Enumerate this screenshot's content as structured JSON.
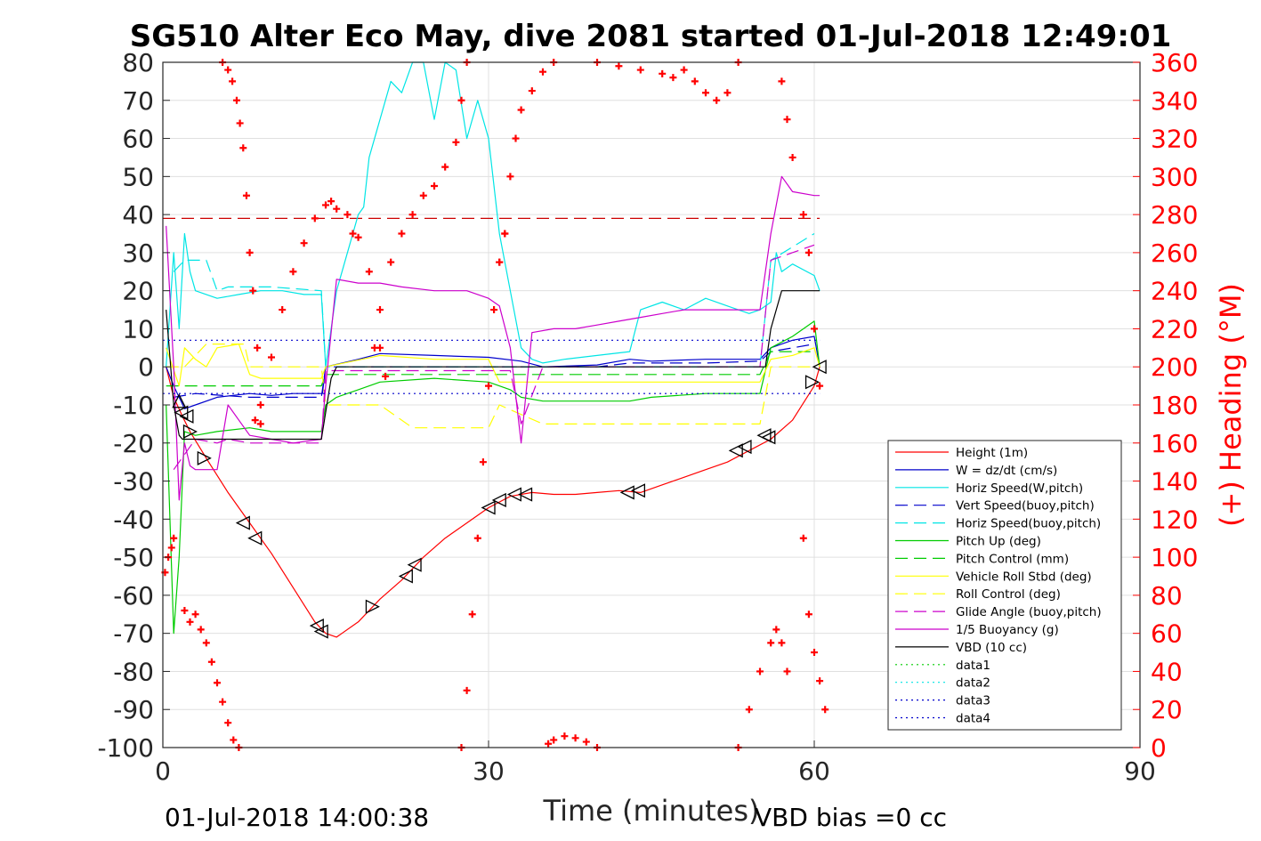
{
  "chart_data": {
    "type": "line",
    "title": "SG510 Alter Eco May, dive 2081 started 01-Jul-2018 12:49:01",
    "xlabel": "Time (minutes)",
    "ylabel": "",
    "y2label": "(+) Heading (°M)",
    "xlim": [
      0,
      90
    ],
    "ylim": [
      -100,
      80
    ],
    "y2lim": [
      0,
      360
    ],
    "x_ticks": [
      "0",
      "30",
      "60",
      "90"
    ],
    "y_ticks": [
      "80",
      "70",
      "60",
      "50",
      "40",
      "30",
      "20",
      "10",
      "0",
      "-10",
      "-20",
      "-30",
      "-40",
      "-50",
      "-60",
      "-70",
      "-80",
      "-90",
      "-100"
    ],
    "y2_ticks": [
      "360",
      "340",
      "320",
      "300",
      "280",
      "260",
      "240",
      "220",
      "200",
      "180",
      "160",
      "140",
      "120",
      "100",
      "80",
      "60",
      "40",
      "20",
      "0"
    ],
    "grid": true,
    "legend_position": "bottom-right",
    "footer_left": "01-Jul-2018 14:00:38",
    "footer_right": "VBD bias =0 cc",
    "series": [
      {
        "name": "Height (1m)",
        "color": "#ff0000",
        "style": "solid",
        "x": [
          0.3,
          1,
          1.8,
          2.5,
          4,
          6,
          8,
          10,
          12,
          14,
          15,
          16,
          18,
          20,
          22,
          24,
          26,
          28,
          30,
          32,
          34,
          36,
          38,
          40,
          42,
          44,
          46,
          48,
          50,
          52,
          54,
          56,
          58,
          60,
          60.5
        ],
        "y": [
          0,
          -8,
          -13,
          -17,
          -24,
          -33,
          -41,
          -49,
          -58,
          -67,
          -70,
          -71,
          -67,
          -61,
          -56,
          -50,
          -45,
          -41,
          -37,
          -34,
          -33,
          -33.5,
          -33.5,
          -33,
          -32.5,
          -33,
          -31,
          -29,
          -27,
          -25,
          -22,
          -19,
          -14,
          -5,
          0
        ]
      },
      {
        "name": "W = dz/dt (cm/s)",
        "color": "#0000cc",
        "style": "solid",
        "x": [
          0.3,
          1,
          2,
          3,
          5,
          8,
          10,
          12,
          14,
          14.7,
          15,
          18,
          20,
          25,
          30,
          33,
          35,
          40,
          43,
          45,
          50,
          55,
          56,
          58,
          60,
          60.5
        ],
        "y": [
          0,
          -5,
          -11,
          -10,
          -8,
          -7,
          -7.5,
          -7,
          -7,
          -7,
          0,
          2,
          3.5,
          3,
          2.5,
          1.5,
          0,
          0.5,
          2,
          1.5,
          2,
          2,
          5,
          7,
          8,
          0
        ]
      },
      {
        "name": "Horiz Speed(W,pitch)",
        "color": "#00e5e5",
        "style": "solid",
        "x": [
          0.3,
          1,
          1.5,
          2,
          2.5,
          3,
          5,
          7,
          9,
          11,
          13,
          14.6,
          15,
          16,
          17,
          18,
          18.5,
          19,
          20,
          21,
          22,
          23,
          24,
          25,
          26,
          27,
          28,
          29,
          30,
          31,
          32,
          33,
          34,
          35,
          37,
          40,
          43,
          44,
          46,
          48,
          50,
          52,
          54,
          55,
          56,
          56.5,
          57,
          58,
          60,
          60.5
        ],
        "y": [
          0,
          30,
          10,
          35,
          25,
          20,
          18,
          19,
          20,
          20,
          19,
          19,
          0,
          20,
          30,
          40,
          42,
          55,
          65,
          75,
          72,
          80,
          80,
          65,
          80,
          78,
          60,
          70,
          60,
          35,
          20,
          5,
          2,
          1,
          2,
          3,
          4,
          15,
          17,
          15,
          18,
          16,
          14,
          15,
          17,
          30,
          25,
          27,
          24,
          20
        ]
      },
      {
        "name": "Vert Speed(buoy,pitch)",
        "color": "#0000cc",
        "style": "dashed",
        "x": [
          1,
          3,
          8,
          14.6,
          15,
          30,
          35,
          40,
          43,
          50,
          55,
          56,
          60
        ],
        "y": [
          -8,
          -7,
          -8,
          -8,
          0,
          0,
          0,
          0,
          1,
          1,
          1.5,
          4,
          6
        ]
      },
      {
        "name": "Horiz Speed(buoy,pitch)",
        "color": "#00e5e5",
        "style": "dashed",
        "x": [
          1,
          2,
          4,
          5,
          6,
          10,
          14.6,
          15,
          30,
          31,
          35,
          40,
          43,
          50,
          55,
          56,
          60
        ],
        "y": [
          25,
          28,
          28,
          20,
          21,
          21,
          20,
          0,
          0,
          0,
          0,
          0,
          0,
          0,
          0,
          28,
          35
        ]
      },
      {
        "name": "Pitch Up (deg)",
        "color": "#00cc00",
        "style": "solid",
        "x": [
          0.3,
          1,
          1.5,
          2,
          3,
          5,
          8,
          10,
          14.6,
          15,
          16,
          18,
          20,
          25,
          30,
          32,
          33,
          35,
          40,
          43,
          45,
          50,
          55,
          56,
          58,
          60,
          60.5
        ],
        "y": [
          -10,
          -70,
          -50,
          -17,
          -18,
          -17,
          -16,
          -17,
          -17,
          -10,
          -8,
          -6,
          -4,
          -3,
          -4,
          -6,
          -8,
          -9,
          -9,
          -9,
          -8,
          -7,
          -7,
          5,
          8,
          12,
          0
        ]
      },
      {
        "name": "Pitch Control (mm)",
        "color": "#00cc00",
        "style": "dashed",
        "x": [
          0.3,
          2,
          10,
          14.6,
          15,
          30,
          35,
          45,
          50,
          55,
          56,
          60
        ],
        "y": [
          -5,
          -5,
          -5,
          -5,
          -2,
          -2,
          -2,
          -2,
          -2,
          -2,
          4,
          4
        ]
      },
      {
        "name": "Vehicle Roll Stbd (deg)",
        "color": "#ffff00",
        "style": "solid",
        "x": [
          0.3,
          1.5,
          2,
          3,
          4,
          5,
          7,
          8,
          9,
          10,
          14.6,
          15,
          20,
          25,
          30,
          31,
          32,
          35,
          40,
          45,
          50,
          55,
          56,
          58,
          60,
          60.5
        ],
        "y": [
          5,
          -5,
          5,
          2,
          0,
          5,
          6,
          -2,
          -3,
          -3,
          -3,
          0,
          3,
          2,
          2,
          -4,
          -4,
          -4,
          -4,
          -4,
          -4,
          -4,
          2,
          3,
          5,
          0
        ]
      },
      {
        "name": "Roll Control (deg)",
        "color": "#ffff00",
        "style": "dashed",
        "x": [
          0.3,
          2,
          4,
          7.5,
          8,
          14.6,
          15,
          20,
          23,
          25,
          30,
          31,
          35,
          43,
          50,
          55,
          56,
          60
        ],
        "y": [
          0,
          0,
          6,
          6,
          0,
          0,
          -10,
          -10,
          -16,
          -16,
          -16,
          -10,
          -15,
          -15,
          -15,
          -15,
          0,
          0
        ]
      },
      {
        "name": "Glide Angle (buoy,pitch)",
        "color": "#cc00cc",
        "style": "dashed",
        "x": [
          1,
          2,
          3,
          5,
          6,
          8,
          14.6,
          15,
          30,
          31,
          32,
          33,
          35,
          40,
          45,
          50,
          55,
          56,
          60
        ],
        "y": [
          -27,
          -23,
          -19,
          -20,
          -19,
          -20,
          -20,
          -1,
          -1,
          -1,
          -1,
          -15,
          0,
          0,
          0,
          0,
          0,
          28,
          32
        ]
      },
      {
        "name": "1/5 Buoyancy (g)",
        "color": "#cc00cc",
        "style": "solid",
        "x": [
          0.3,
          1,
          1.5,
          2,
          2.5,
          3,
          5,
          6,
          8,
          10,
          12,
          14.6,
          15,
          16,
          18,
          20,
          22,
          25,
          28,
          30,
          31,
          32,
          33,
          34,
          36,
          38,
          40,
          42,
          44,
          46,
          48,
          50,
          55,
          56,
          57,
          58,
          60,
          60.5
        ],
        "y": [
          37,
          0,
          -35,
          -20,
          -26,
          -27,
          -27,
          -10,
          -18,
          -19,
          -20,
          -19,
          -5,
          23,
          22,
          22,
          21,
          20,
          20,
          18,
          16,
          5,
          -20,
          9,
          10,
          10,
          11,
          12,
          13,
          14,
          15,
          15,
          15,
          35,
          50,
          46,
          45,
          45
        ]
      },
      {
        "name": "VBD (10 cc)",
        "color": "#000000",
        "style": "solid",
        "x": [
          0.3,
          1,
          1.5,
          1.8,
          2,
          14.6,
          15.5,
          16,
          30,
          40,
          55.5,
          56,
          57,
          60.5
        ],
        "y": [
          15,
          -10,
          -18,
          -19,
          -19,
          -19,
          -3,
          0,
          0,
          0,
          0,
          10,
          20,
          20
        ]
      },
      {
        "name": "data1",
        "color": "#00cc00",
        "style": "dotted",
        "x": [],
        "y": []
      },
      {
        "name": "data2",
        "color": "#00e5e5",
        "style": "dotted",
        "x": [],
        "y": []
      },
      {
        "name": "data3",
        "color": "#0000cc",
        "style": "dotted",
        "x": [
          0,
          60.5
        ],
        "y": [
          7,
          7
        ]
      },
      {
        "name": "data4",
        "color": "#0000cc",
        "style": "dotted",
        "x": [
          0,
          60.5
        ],
        "y": [
          -7,
          -7
        ]
      }
    ],
    "heading_ref_dashed": {
      "color": "#cc0000",
      "y2": 278,
      "x": [
        0,
        60.5
      ]
    },
    "heading_markers": {
      "color": "#ff0000",
      "symbol": "+",
      "axis": "right",
      "segments": [
        {
          "x": [
            0.2,
            0.5,
            0.8,
            1.0
          ],
          "y2": [
            92,
            100,
            105,
            110
          ]
        },
        {
          "x": [
            2,
            2.5,
            3.0,
            3.5,
            4.0,
            4.5,
            5,
            5.5,
            6,
            6.5,
            7
          ],
          "y2": [
            72,
            66,
            70,
            62,
            55,
            45,
            34,
            24,
            13,
            4,
            0
          ]
        },
        {
          "x": [
            5.5,
            6.0,
            6.4,
            6.8,
            7.1,
            7.4,
            7.7,
            8,
            8.3,
            8.7,
            9
          ],
          "y2": [
            360,
            356,
            350,
            340,
            328,
            315,
            290,
            260,
            240,
            210,
            170
          ]
        },
        {
          "x": [
            8.5,
            9,
            10,
            11,
            12,
            13,
            14,
            15,
            15.5,
            16,
            17,
            17.5,
            18,
            19,
            20,
            20.5
          ],
          "y2": [
            172,
            180,
            205,
            230,
            250,
            265,
            278,
            285,
            287,
            283,
            280,
            270,
            268,
            250,
            210,
            195
          ]
        },
        {
          "x": [
            19.5,
            20,
            21,
            22,
            23,
            24,
            25,
            26,
            27,
            27.5,
            28
          ],
          "y2": [
            210,
            230,
            255,
            270,
            280,
            290,
            295,
            305,
            318,
            340,
            360
          ]
        },
        {
          "x": [
            27.5,
            28,
            28.5,
            29,
            29.5,
            30,
            30.5,
            31,
            31.5
          ],
          "y2": [
            0,
            30,
            70,
            110,
            150,
            190,
            230,
            255,
            270
          ]
        },
        {
          "x": [
            31,
            31.5,
            32,
            32.5,
            33,
            34,
            35,
            36
          ],
          "y2": [
            255,
            270,
            300,
            320,
            335,
            345,
            355,
            360
          ]
        },
        {
          "x": [
            35.5,
            36,
            37,
            38,
            39,
            40
          ],
          "y2": [
            2,
            4,
            6,
            5,
            3,
            0
          ]
        },
        {
          "x": [
            40,
            42,
            44,
            46,
            47,
            48,
            49,
            50,
            51,
            52,
            53
          ],
          "y2": [
            360,
            358,
            356,
            354,
            352,
            356,
            350,
            344,
            340,
            344,
            360
          ]
        },
        {
          "x": [
            53,
            54,
            55,
            56,
            56.5,
            57,
            57.5
          ],
          "y2": [
            0,
            20,
            40,
            55,
            62,
            55,
            40
          ]
        },
        {
          "x": [
            57,
            57.5,
            58,
            59,
            59.5,
            60,
            60.5
          ],
          "y2": [
            350,
            330,
            310,
            280,
            260,
            220,
            190
          ]
        },
        {
          "x": [
            59,
            59.5,
            60,
            60.5,
            61
          ],
          "y2": [
            110,
            70,
            50,
            35,
            20
          ]
        }
      ]
    },
    "triangle_markers": {
      "color": "#000000",
      "points": [
        {
          "x": 1.5,
          "y": -9,
          "dir": "up"
        },
        {
          "x": 1.7,
          "y": -12,
          "dir": "left"
        },
        {
          "x": 2.2,
          "y": -13,
          "dir": "left"
        },
        {
          "x": 2.5,
          "y": -17,
          "dir": "right"
        },
        {
          "x": 3.8,
          "y": -24,
          "dir": "right"
        },
        {
          "x": 7.4,
          "y": -41,
          "dir": "left"
        },
        {
          "x": 8.5,
          "y": -45,
          "dir": "left"
        },
        {
          "x": 14.2,
          "y": -68,
          "dir": "left"
        },
        {
          "x": 14.6,
          "y": -69.5,
          "dir": "left"
        },
        {
          "x": 19.3,
          "y": -63,
          "dir": "right"
        },
        {
          "x": 22.4,
          "y": -55,
          "dir": "left"
        },
        {
          "x": 23.2,
          "y": -52,
          "dir": "left"
        },
        {
          "x": 30,
          "y": -37,
          "dir": "left"
        },
        {
          "x": 31,
          "y": -35,
          "dir": "left"
        },
        {
          "x": 32.4,
          "y": -33.5,
          "dir": "left"
        },
        {
          "x": 33.4,
          "y": -33.5,
          "dir": "left"
        },
        {
          "x": 42.8,
          "y": -33,
          "dir": "left"
        },
        {
          "x": 43.8,
          "y": -32.5,
          "dir": "left"
        },
        {
          "x": 52.8,
          "y": -22,
          "dir": "left"
        },
        {
          "x": 53.6,
          "y": -21,
          "dir": "left"
        },
        {
          "x": 55.4,
          "y": -18,
          "dir": "left"
        },
        {
          "x": 55.8,
          "y": -18.5,
          "dir": "left"
        },
        {
          "x": 59.8,
          "y": -4,
          "dir": "right"
        },
        {
          "x": 60.5,
          "y": 0,
          "dir": "left"
        }
      ]
    }
  }
}
